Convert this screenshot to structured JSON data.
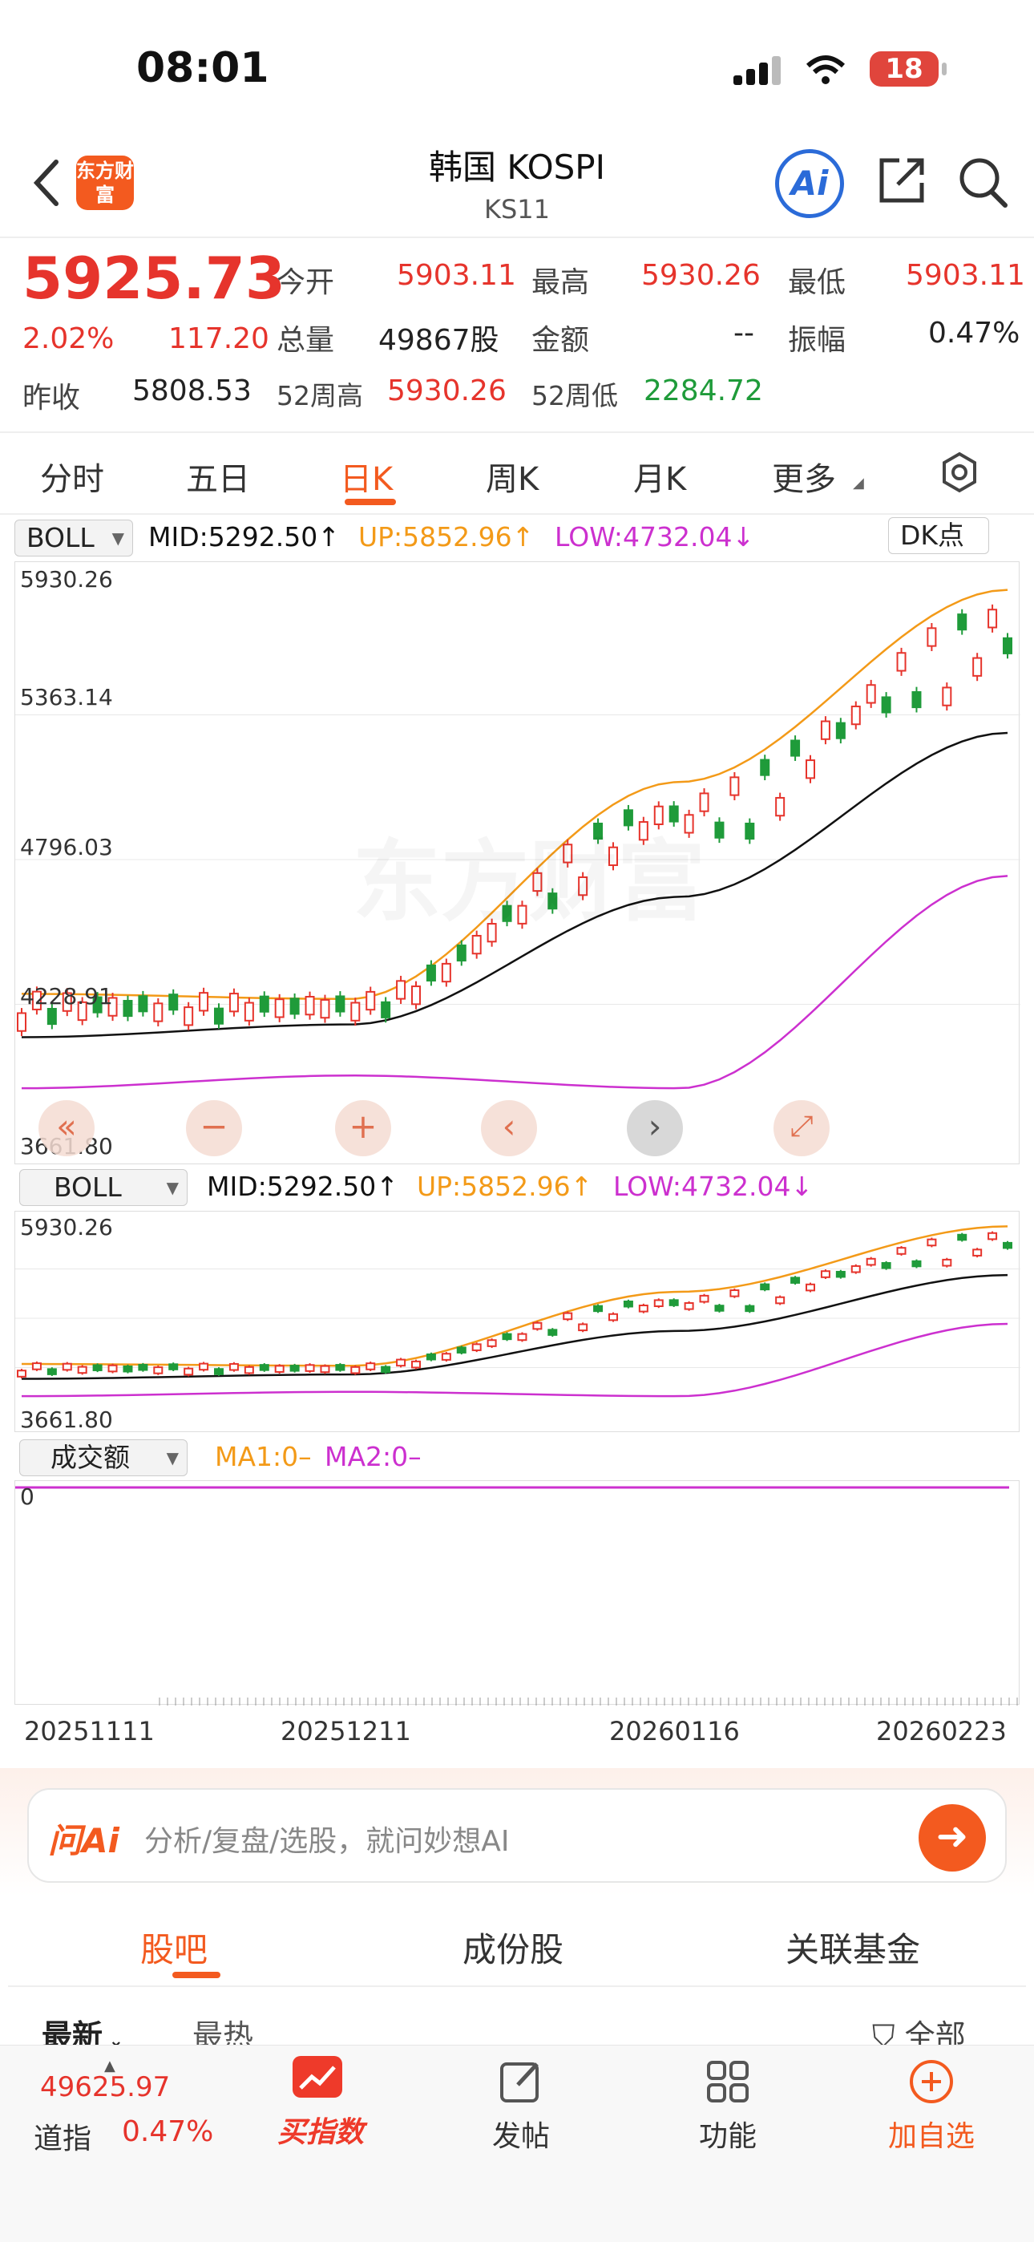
{
  "status_bar": {
    "time": "08:01",
    "battery": "18"
  },
  "header": {
    "logo_text": "东方财富",
    "title": "韩国 KOSPI",
    "code": "KS11",
    "ai_label": "Ai"
  },
  "quote": {
    "price": "5925.73",
    "change_pct": "2.02%",
    "change": "117.20",
    "prev_close_label": "昨收",
    "prev_close": "5808.53",
    "open_label": "今开",
    "open": "5903.11",
    "high_label": "最高",
    "high": "5930.26",
    "low_label": "最低",
    "low": "5903.11",
    "volume_label": "总量",
    "volume": "49867股",
    "amount_label": "金额",
    "amount": "--",
    "amplitude_label": "振幅",
    "amplitude": "0.47%",
    "w52_high_label": "52周高",
    "w52_high": "5930.26",
    "w52_low_label": "52周低",
    "w52_low": "2284.72"
  },
  "tabs": [
    "分时",
    "五日",
    "日K",
    "周K",
    "月K",
    "更多"
  ],
  "active_tab": "日K",
  "main_chart": {
    "indicator": "BOLL",
    "mid": "MID:5292.50↑",
    "up": "UP:5852.96↑",
    "low": "LOW:4732.04↓",
    "dk_button": "DK点",
    "y_labels": [
      "5930.26",
      "5363.14",
      "4796.03",
      "4228.91",
      "3661.80"
    ]
  },
  "sub_chart": {
    "indicator": "BOLL",
    "mid": "MID:5292.50↑",
    "up": "UP:5852.96↑",
    "low": "LOW:4732.04↓",
    "y_top": "5930.26",
    "y_bottom": "3661.80"
  },
  "volume_chart": {
    "indicator": "成交额",
    "ma1": "MA1:0–",
    "ma2": "MA2:0–",
    "y_label": "0"
  },
  "x_axis": [
    "20251111",
    "20251211",
    "20260116",
    "20260223"
  ],
  "chart_data": {
    "type": "line",
    "x": [
      "20251111",
      "20251211",
      "20260116",
      "20260223"
    ],
    "ylim": [
      3661.8,
      5930.26
    ],
    "series": [
      {
        "name": "MID",
        "values": [
          4100,
          4150,
          4650,
          5292.5
        ]
      },
      {
        "name": "UP",
        "values": [
          4270,
          4250,
          5100,
          5852.96
        ]
      },
      {
        "name": "LOW",
        "values": [
          3900,
          3950,
          3900,
          4732.04
        ]
      }
    ]
  },
  "ask_bar": {
    "brand": "问Ai",
    "placeholder": "分析/复盘/选股，就问妙想AI"
  },
  "community_tabs": [
    "股吧",
    "成份股",
    "关联基金"
  ],
  "feed_filters": {
    "latest": "最新",
    "hot": "最热",
    "all": "全部"
  },
  "bottom_nav": {
    "ticker_value": "49625.97",
    "ticker_name": "道指",
    "ticker_pct": "0.47%",
    "buy_index": "买指数",
    "post": "发帖",
    "functions": "功能",
    "add_watch": "加自选"
  },
  "colors": {
    "accent": "#f35a1f",
    "up_red": "#e6342c",
    "down_green": "#1f9b3a",
    "boll_up": "#f39a18",
    "boll_low": "#cc30cf"
  }
}
